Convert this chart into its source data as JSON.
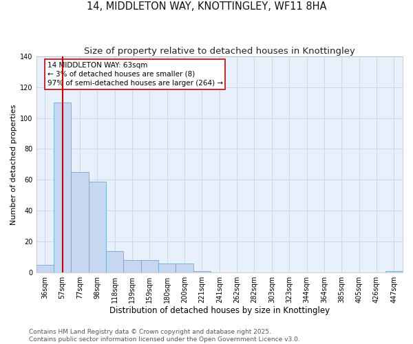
{
  "title_line1": "14, MIDDLETON WAY, KNOTTINGLEY, WF11 8HA",
  "title_line2": "Size of property relative to detached houses in Knottingley",
  "xlabel": "Distribution of detached houses by size in Knottingley",
  "ylabel": "Number of detached properties",
  "categories": [
    "36sqm",
    "57sqm",
    "77sqm",
    "98sqm",
    "118sqm",
    "139sqm",
    "159sqm",
    "180sqm",
    "200sqm",
    "221sqm",
    "241sqm",
    "262sqm",
    "282sqm",
    "303sqm",
    "323sqm",
    "344sqm",
    "364sqm",
    "385sqm",
    "405sqm",
    "426sqm",
    "447sqm"
  ],
  "values": [
    5,
    110,
    65,
    59,
    14,
    8,
    8,
    6,
    6,
    1,
    0,
    0,
    0,
    0,
    0,
    0,
    0,
    0,
    0,
    0,
    1
  ],
  "bar_color": "#c5d8f0",
  "bar_edge_color": "#6aaad4",
  "ylim": [
    0,
    140
  ],
  "yticks": [
    0,
    20,
    40,
    60,
    80,
    100,
    120,
    140
  ],
  "grid_color": "#d0d8e8",
  "background_color": "#e8f0fc",
  "vline_x": 1,
  "vline_color": "#cc0000",
  "annotation_text_line1": "14 MIDDLETON WAY: 63sqm",
  "annotation_text_line2": "← 3% of detached houses are smaller (8)",
  "annotation_text_line3": "97% of semi-detached houses are larger (264) →",
  "annotation_fontsize": 7.5,
  "footer_line1": "Contains HM Land Registry data © Crown copyright and database right 2025.",
  "footer_line2": "Contains public sector information licensed under the Open Government Licence v3.0.",
  "title_fontsize": 10.5,
  "subtitle_fontsize": 9.5,
  "xlabel_fontsize": 8.5,
  "ylabel_fontsize": 8.0,
  "tick_fontsize": 7.0,
  "footer_fontsize": 6.5
}
